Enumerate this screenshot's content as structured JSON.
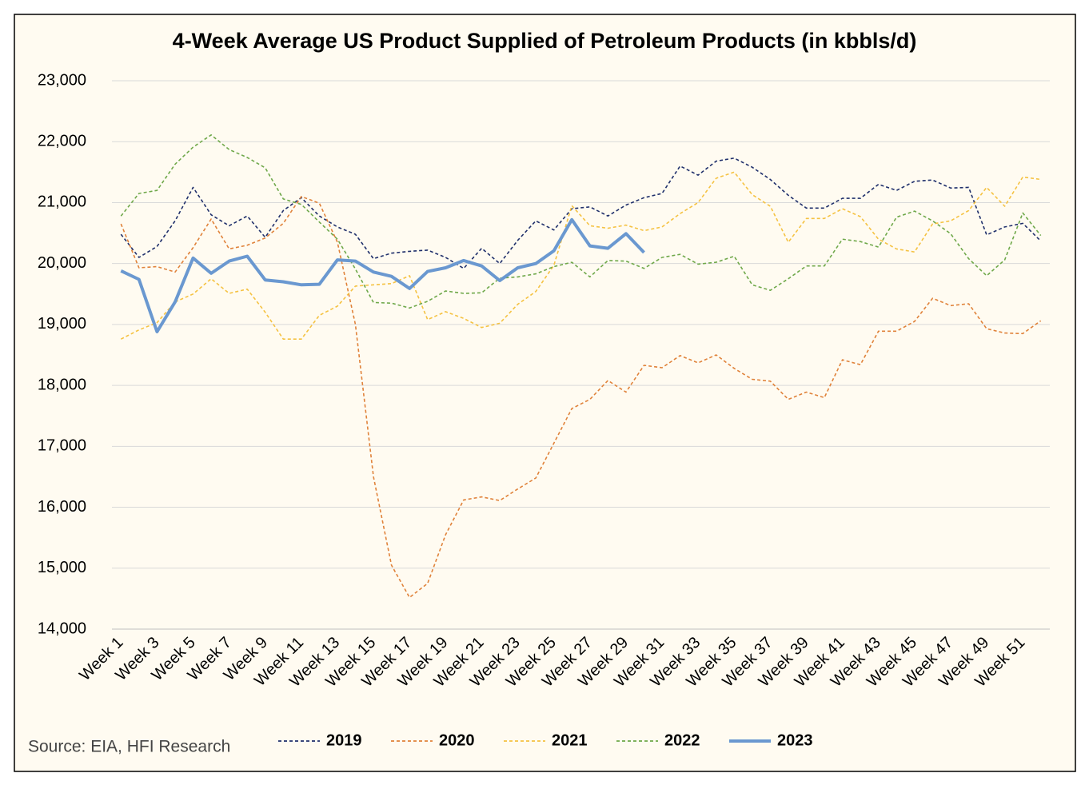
{
  "chart_data": {
    "type": "line",
    "title": "4-Week Average US Product Supplied of Petroleum Products (in kbbls/d)",
    "source": "Source: EIA, HFI Research",
    "categories": [
      "Week 1",
      null,
      "Week 3",
      null,
      "Week 5",
      null,
      "Week 7",
      null,
      "Week 9",
      null,
      "Week 11",
      null,
      "Week 13",
      null,
      "Week 15",
      null,
      "Week 17",
      null,
      "Week 19",
      null,
      "Week 21",
      null,
      "Week 23",
      null,
      "Week 25",
      null,
      "Week 27",
      null,
      "Week 29",
      null,
      "Week 31",
      null,
      "Week 33",
      null,
      "Week 35",
      null,
      "Week 37",
      null,
      "Week 39",
      null,
      "Week 41",
      null,
      "Week 43",
      null,
      "Week 45",
      null,
      "Week 47",
      null,
      "Week 49",
      null,
      "Week 51",
      null
    ],
    "ylim": [
      14000,
      23000
    ],
    "yticks": [
      {
        "value": 14000,
        "label": "14,000"
      },
      {
        "value": 15000,
        "label": "15,000"
      },
      {
        "value": 16000,
        "label": "16,000"
      },
      {
        "value": 17000,
        "label": "17,000"
      },
      {
        "value": 18000,
        "label": "18,000"
      },
      {
        "value": 19000,
        "label": "19,000"
      },
      {
        "value": 20000,
        "label": "20,000"
      },
      {
        "value": 21000,
        "label": "21,000"
      },
      {
        "value": 22000,
        "label": "22,000"
      },
      {
        "value": 23000,
        "label": "23,000"
      }
    ],
    "grid": true,
    "legend": "bottom",
    "series": [
      {
        "name": "2019",
        "color": "#1f2f6b",
        "style": "dashed",
        "values": [
          20480,
          20100,
          20280,
          20700,
          21250,
          20800,
          20620,
          20780,
          20430,
          20870,
          21080,
          20780,
          20600,
          20480,
          20080,
          20170,
          20200,
          20220,
          20100,
          19920,
          20250,
          20000,
          20380,
          20700,
          20550,
          20900,
          20930,
          20780,
          20960,
          21080,
          21150,
          21600,
          21450,
          21680,
          21730,
          21580,
          21380,
          21120,
          20910,
          20910,
          21070,
          21070,
          21300,
          21200,
          21350,
          21370,
          21240,
          21250,
          20470,
          20600,
          20660,
          20370
        ]
      },
      {
        "name": "2020",
        "color": "#e0823a",
        "style": "dashed",
        "values": [
          20650,
          19930,
          19950,
          19860,
          20260,
          20730,
          20240,
          20300,
          20420,
          20660,
          21100,
          20990,
          20350,
          19000,
          16500,
          15050,
          14520,
          14750,
          15550,
          16120,
          16170,
          16110,
          16300,
          16480,
          17050,
          17620,
          17770,
          18080,
          17890,
          18330,
          18290,
          18490,
          18370,
          18500,
          18280,
          18100,
          18070,
          17770,
          17890,
          17800,
          18420,
          18340,
          18890,
          18890,
          19050,
          19430,
          19310,
          19340,
          18930,
          18860,
          18850,
          19060
        ]
      },
      {
        "name": "2021",
        "color": "#f5c242",
        "style": "dashed",
        "values": [
          18760,
          18910,
          19030,
          19370,
          19500,
          19750,
          19510,
          19580,
          19200,
          18760,
          18760,
          19150,
          19300,
          19630,
          19650,
          19670,
          19800,
          19080,
          19210,
          19100,
          18950,
          19020,
          19330,
          19540,
          19970,
          20950,
          20620,
          20580,
          20630,
          20540,
          20600,
          20820,
          21000,
          21400,
          21500,
          21130,
          20940,
          20350,
          20740,
          20740,
          20900,
          20770,
          20400,
          20240,
          20190,
          20650,
          20700,
          20870,
          21250,
          20940,
          21420,
          21380
        ]
      },
      {
        "name": "2022",
        "color": "#6fa84a",
        "style": "dashed",
        "values": [
          20780,
          21150,
          21200,
          21630,
          21910,
          22110,
          21870,
          21740,
          21570,
          21060,
          20970,
          20680,
          20400,
          19910,
          19360,
          19350,
          19270,
          19380,
          19550,
          19510,
          19520,
          19760,
          19780,
          19830,
          19950,
          20020,
          19780,
          20050,
          20040,
          19920,
          20100,
          20150,
          19990,
          20020,
          20120,
          19650,
          19560,
          19750,
          19960,
          19960,
          20400,
          20360,
          20270,
          20760,
          20860,
          20700,
          20490,
          20080,
          19800,
          20060,
          20830,
          20460
        ]
      },
      {
        "name": "2023",
        "color": "#6a98d0",
        "style": "solid",
        "values": [
          19880,
          19740,
          18880,
          19370,
          20090,
          19840,
          20040,
          20120,
          19730,
          19700,
          19650,
          19660,
          20060,
          20040,
          19860,
          19790,
          19590,
          19870,
          19930,
          20050,
          19960,
          19720,
          19930,
          20000,
          20210,
          20720,
          20290,
          20250,
          20490,
          20180,
          null,
          null,
          null,
          null,
          null,
          null,
          null,
          null,
          null,
          null,
          null,
          null,
          null,
          null,
          null,
          null,
          null,
          null,
          null,
          null,
          null,
          null
        ]
      }
    ]
  }
}
